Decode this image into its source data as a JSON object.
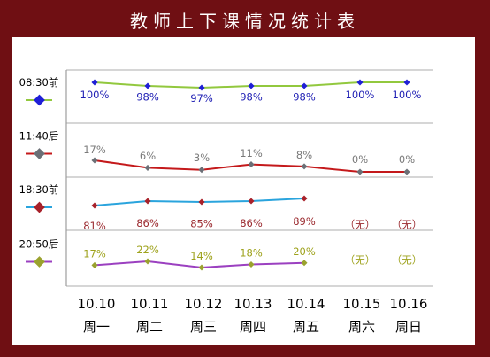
{
  "title": "教师上下课情况统计表",
  "chart_data": {
    "type": "line",
    "categories": [
      {
        "date": "10.10",
        "weekday": "周一"
      },
      {
        "date": "10.11",
        "weekday": "周二"
      },
      {
        "date": "10.12",
        "weekday": "周三"
      },
      {
        "date": "10.13",
        "weekday": "周四"
      },
      {
        "date": "10.14",
        "weekday": "周五"
      },
      {
        "date": "10.15",
        "weekday": "周六"
      },
      {
        "date": "10.16",
        "weekday": "周日"
      }
    ],
    "series": [
      {
        "name": "08:30前",
        "color": "#92c83e",
        "marker_color": "#1f1fd6",
        "label_color": "#1f1fb4",
        "values": [
          100,
          98,
          97,
          98,
          98,
          100,
          100
        ],
        "labels": [
          "100%",
          "98%",
          "97%",
          "98%",
          "98%",
          "100%",
          "100%"
        ]
      },
      {
        "name": "11:40后",
        "color": "#c4191b",
        "marker_color": "#6b6f76",
        "label_color": "#7a7a7a",
        "values": [
          17,
          6,
          3,
          11,
          8,
          0,
          0
        ],
        "labels": [
          "17%",
          "6%",
          "3%",
          "11%",
          "8%",
          "0%",
          "0%"
        ]
      },
      {
        "name": "18:30前",
        "color": "#2aa4dd",
        "marker_color": "#a8212a",
        "label_color": "#9b2a2f",
        "values": [
          81,
          86,
          85,
          86,
          89,
          null,
          null
        ],
        "labels": [
          "81%",
          "86%",
          "85%",
          "86%",
          "89%",
          "（无）",
          "（无）"
        ]
      },
      {
        "name": "20:50后",
        "color": "#9b40c0",
        "marker_color": "#9aa22e",
        "label_color": "#9ea21c",
        "values": [
          17,
          22,
          14,
          18,
          20,
          null,
          null
        ],
        "labels": [
          "17%",
          "22%",
          "14%",
          "18%",
          "20%",
          "（无）",
          "（无）"
        ]
      }
    ]
  }
}
